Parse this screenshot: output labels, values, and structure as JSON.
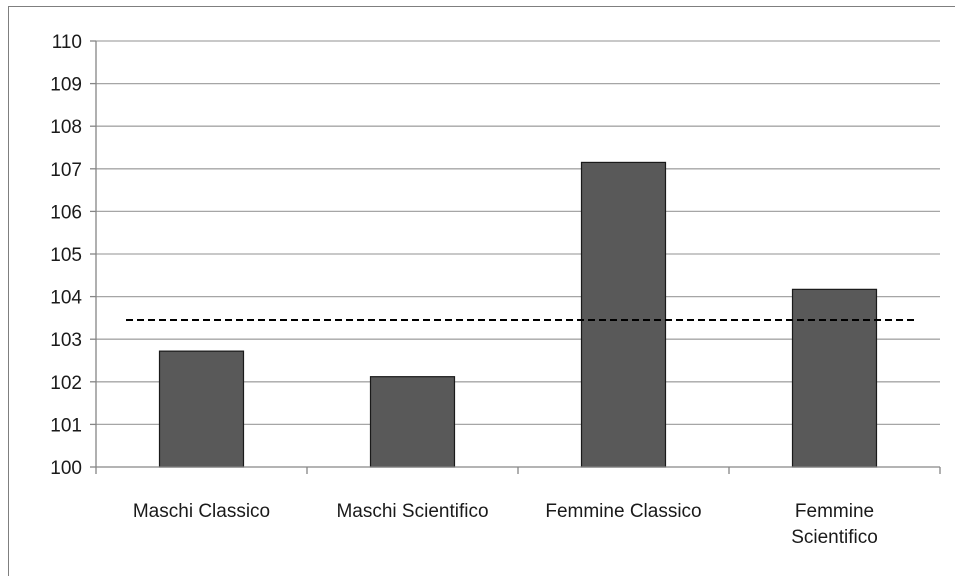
{
  "chart_data": {
    "type": "bar",
    "categories": [
      [
        "Maschi Classico"
      ],
      [
        "Maschi Scientifico"
      ],
      [
        "Femmine Classico"
      ],
      [
        "Femmine",
        "Scientifico"
      ]
    ],
    "values": [
      102.72,
      102.12,
      107.15,
      104.17
    ],
    "reference_line": 103.45,
    "ylim": [
      100,
      110
    ],
    "yticks": [
      100,
      101,
      102,
      103,
      104,
      105,
      106,
      107,
      108,
      109,
      110
    ],
    "grid": true,
    "title": "",
    "xlabel": "",
    "ylabel": "",
    "colors": {
      "bar": "#595959",
      "bar_edge": "#1a1a1a",
      "grid": "#a6a6a6",
      "axis": "#868686",
      "reference_line": "#000000"
    }
  }
}
